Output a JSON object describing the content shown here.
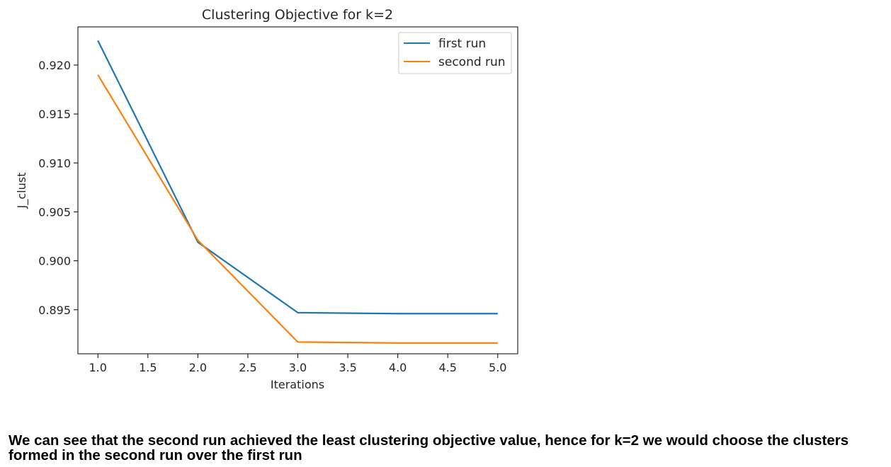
{
  "chart_data": {
    "type": "line",
    "title": "Clustering Objective for k=2",
    "xlabel": "Iterations",
    "ylabel": "J_clust",
    "xlim": [
      0.8,
      5.2
    ],
    "ylim": [
      0.8905,
      0.9239
    ],
    "xticks": [
      1.0,
      1.5,
      2.0,
      2.5,
      3.0,
      3.5,
      4.0,
      4.5,
      5.0
    ],
    "xtick_labels": [
      "1.0",
      "1.5",
      "2.0",
      "2.5",
      "3.0",
      "3.5",
      "4.0",
      "4.5",
      "5.0"
    ],
    "yticks": [
      0.895,
      0.9,
      0.905,
      0.91,
      0.915,
      0.92
    ],
    "ytick_labels": [
      "0.895",
      "0.900",
      "0.905",
      "0.910",
      "0.915",
      "0.920"
    ],
    "legend_position": "top-right",
    "x": [
      1,
      2,
      3,
      4,
      5
    ],
    "series": [
      {
        "name": "first run",
        "color": "#1f77b4",
        "values": [
          0.9225,
          0.9019,
          0.8947,
          0.8946,
          0.8946
        ]
      },
      {
        "name": "second run",
        "color": "#ff7f0e",
        "values": [
          0.919,
          0.9021,
          0.8917,
          0.8916,
          0.8916
        ]
      }
    ]
  },
  "caption": "We can see that the second run achieved the least clustering objective value, hence for k=2 we would choose the clusters formed in the second run over the first run"
}
